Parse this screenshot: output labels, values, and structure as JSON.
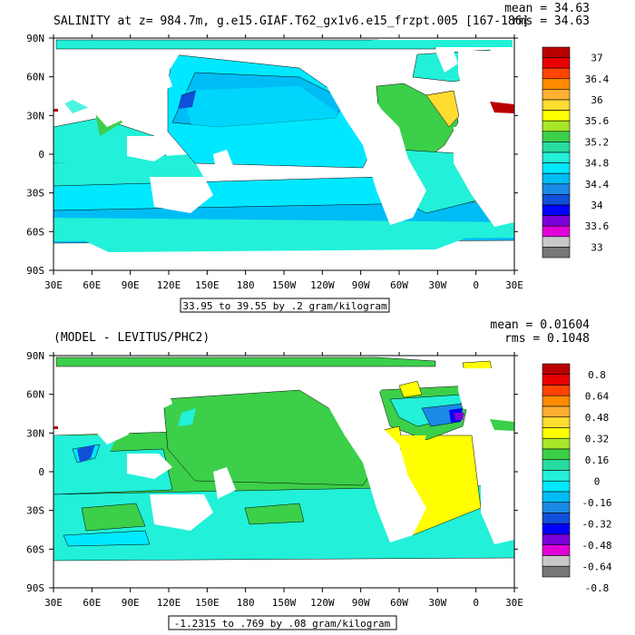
{
  "chart_data": [
    {
      "type": "heatmap",
      "title": "SALINITY at z= 984.7m, g.e15.GIAF.T62_gx1v6.e15_frzpt.005 [167-186]",
      "stats": [
        "mean = 34.63",
        "rms = 34.63"
      ],
      "x_ticks": [
        "30E",
        "60E",
        "90E",
        "120E",
        "150E",
        "180",
        "150W",
        "120W",
        "90W",
        "60W",
        "30W",
        "0",
        "30E"
      ],
      "y_ticks": [
        "90N",
        "60N",
        "30N",
        "0",
        "30S",
        "60S",
        "90S"
      ],
      "range_label": "33.95 to 39.55 by .2 gram/kilogram",
      "colorbar": {
        "labels": [
          "37",
          "36.4",
          "36",
          "35.6",
          "35.2",
          "34.8",
          "34.4",
          "34",
          "33.6",
          "33"
        ],
        "colors": [
          "#b80000",
          "#e80000",
          "#ff4400",
          "#ff8c00",
          "#ffb030",
          "#ffdc30",
          "#ffff00",
          "#a8e628",
          "#3ccf4a",
          "#28dca0",
          "#22f0d8",
          "#00e8ff",
          "#00bcf5",
          "#1a8ae6",
          "#1050d8",
          "#0000ff",
          "#7a00d8",
          "#e000d8",
          "#c8c8c8",
          "#787878"
        ]
      }
    },
    {
      "type": "heatmap",
      "title": "(MODEL - LEVITUS/PHC2)",
      "stats": [
        "mean = 0.01604",
        "rms = 0.1048"
      ],
      "x_ticks": [
        "30E",
        "60E",
        "90E",
        "120E",
        "150E",
        "180",
        "150W",
        "120W",
        "90W",
        "60W",
        "30W",
        "0",
        "30E"
      ],
      "y_ticks": [
        "90N",
        "60N",
        "30N",
        "0",
        "30S",
        "60S",
        "90S"
      ],
      "range_label": "-1.2315 to .769 by .08 gram/kilogram",
      "colorbar": {
        "labels": [
          "0.8",
          "0.64",
          "0.48",
          "0.32",
          "0.16",
          "0",
          "-0.16",
          "-0.32",
          "-0.48",
          "-0.64",
          "-0.8"
        ],
        "colors": [
          "#b80000",
          "#e80000",
          "#ff4400",
          "#ff8c00",
          "#ffb030",
          "#ffdc30",
          "#ffff00",
          "#a8e628",
          "#3ccf4a",
          "#28dca0",
          "#22f0d8",
          "#00e8ff",
          "#00bcf5",
          "#1a8ae6",
          "#1050d8",
          "#0000ff",
          "#7a00d8",
          "#e000d8",
          "#c8c8c8",
          "#787878"
        ]
      }
    }
  ]
}
